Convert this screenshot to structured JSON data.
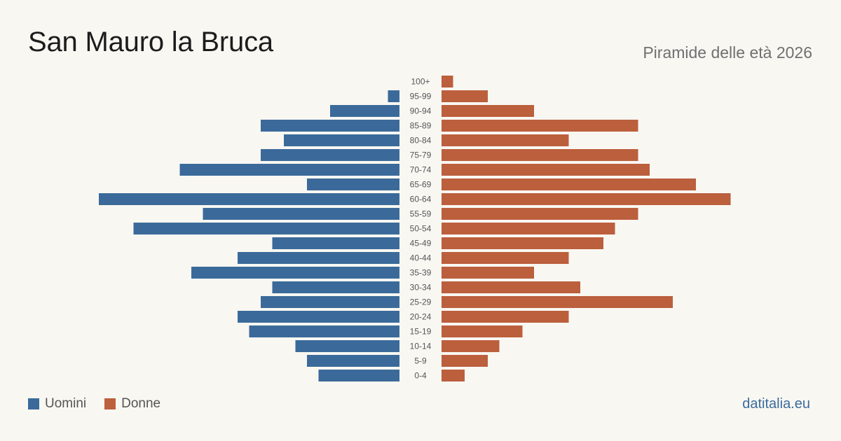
{
  "header": {
    "title": "San Mauro la Bruca",
    "subtitle": "Piramide delle età 2026"
  },
  "colors": {
    "men": "#3b6a9a",
    "women": "#bb5f3d",
    "background": "#f9f7f2",
    "label": "#555555"
  },
  "legend": {
    "men_label": "Uomini",
    "women_label": "Donne"
  },
  "brand": "datitalia.eu",
  "chart_data": {
    "type": "bar",
    "orientation": "horizontal-pyramid",
    "categories": [
      "100+",
      "95-99",
      "90-94",
      "85-89",
      "80-84",
      "75-79",
      "70-74",
      "65-69",
      "60-64",
      "55-59",
      "50-54",
      "45-49",
      "40-44",
      "35-39",
      "30-34",
      "25-29",
      "20-24",
      "15-19",
      "10-14",
      "5-9",
      "0-4"
    ],
    "series": [
      {
        "name": "Uomini",
        "values": [
          0,
          1,
          6,
          12,
          10,
          12,
          19,
          8,
          26,
          17,
          23,
          11,
          14,
          18,
          11,
          12,
          14,
          13,
          9,
          8,
          7
        ]
      },
      {
        "name": "Donne",
        "values": [
          1,
          4,
          8,
          17,
          11,
          17,
          18,
          22,
          25,
          17,
          15,
          14,
          11,
          8,
          12,
          20,
          11,
          7,
          5,
          4,
          2
        ]
      }
    ],
    "grid": false,
    "legend_position": "bottom-left"
  }
}
